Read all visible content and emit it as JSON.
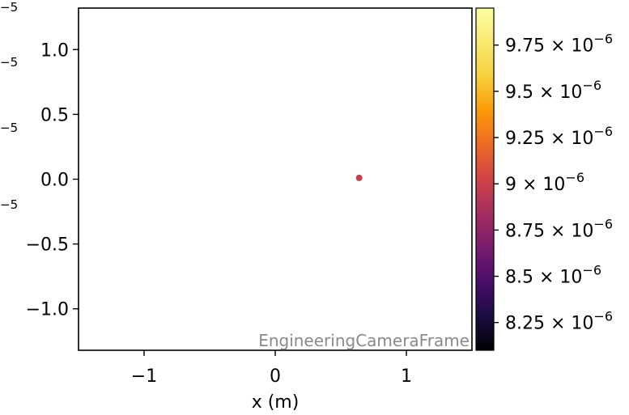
{
  "chart_data": {
    "type": "scatter",
    "title": "",
    "xlabel": "x  (m)",
    "ylabel": "",
    "xlim": [
      -1.5,
      1.5
    ],
    "ylim": [
      -1.32,
      1.32
    ],
    "xticks": [
      {
        "value": -1,
        "label": "−1"
      },
      {
        "value": 0,
        "label": "0"
      },
      {
        "value": 1,
        "label": "1"
      }
    ],
    "yticks": [
      {
        "value": 1.0,
        "label": "1.0"
      },
      {
        "value": 0.5,
        "label": "0.5"
      },
      {
        "value": 0.0,
        "label": "0.0"
      },
      {
        "value": -0.5,
        "label": "−0.5"
      },
      {
        "value": -1.0,
        "label": "−1.0"
      }
    ],
    "points": [
      {
        "x": 0.64,
        "y": 0.01,
        "c": 9e-06,
        "color": "#c73e4c"
      }
    ],
    "annotation": "EngineeringCameraFrame",
    "colorbar": {
      "colormap": "inferno",
      "clim": [
        8.1e-06,
        9.95e-06
      ],
      "ticks": [
        {
          "value": 9.75e-06,
          "mantissa": "9.75",
          "base": "10",
          "exp": "−6"
        },
        {
          "value": 9.5e-06,
          "mantissa": "9.5",
          "base": "10",
          "exp": "−6"
        },
        {
          "value": 9.25e-06,
          "mantissa": "9.25",
          "base": "10",
          "exp": "−6"
        },
        {
          "value": 9e-06,
          "mantissa": "9",
          "base": "10",
          "exp": "−6"
        },
        {
          "value": 8.75e-06,
          "mantissa": "8.75",
          "base": "10",
          "exp": "−6"
        },
        {
          "value": 8.5e-06,
          "mantissa": "8.5",
          "base": "10",
          "exp": "−6"
        },
        {
          "value": 8.25e-06,
          "mantissa": "8.25",
          "base": "10",
          "exp": "−6"
        }
      ]
    },
    "left_clipped_labels": [
      "−5",
      "−5",
      "−5",
      "−5"
    ],
    "grid": false
  }
}
